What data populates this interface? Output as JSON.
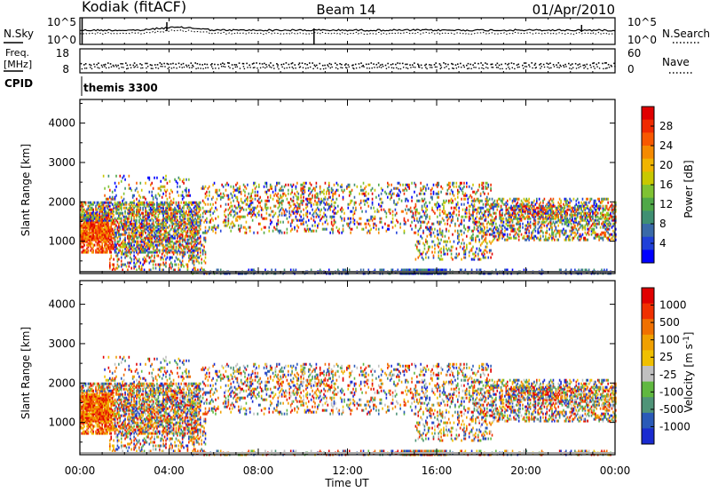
{
  "header": {
    "site": "Kodiak (fitACF)",
    "beam": "Beam 14",
    "date": "01/Apr/2010"
  },
  "top_panels": {
    "nsky_label": "N.Sky",
    "nsky_ticks": [
      "10^5",
      "10^0"
    ],
    "nsearch_label": "N.Search",
    "nsearch_ticks": [
      "10^5",
      "10^0"
    ],
    "freq_label_1": "Freq.",
    "freq_label_2": "[MHz]",
    "freq_ticks": [
      "18",
      "8"
    ],
    "nave_label": "Nave",
    "nave_ticks": [
      "60",
      "0"
    ],
    "cpid_label": "CPID",
    "program": "themis 3300"
  },
  "power_colorbar": {
    "label": "Power [dB]",
    "ticks": [
      "28",
      "24",
      "20",
      "16",
      "12",
      "8",
      "4"
    ],
    "colors": [
      "#0000ff",
      "#2040d8",
      "#3a6aa8",
      "#3f8f72",
      "#4fa848",
      "#7fc232",
      "#c8c800",
      "#f0b400",
      "#f58a00",
      "#f85800",
      "#f02a00",
      "#e00000"
    ]
  },
  "velocity_colorbar": {
    "label": "Velocity [m s^-1]",
    "ticks": [
      "1000",
      "500",
      "100",
      "25",
      "-25",
      "-100",
      "-500",
      "-1000"
    ],
    "colors": [
      "#1a2bd0",
      "#2a5ab8",
      "#4f9478",
      "#60b840",
      "#c0c0c0",
      "#f0c000",
      "#f0a000",
      "#f07000",
      "#f03000",
      "#e00000"
    ]
  },
  "x_axis": {
    "label": "Time UT",
    "ticks": [
      "00:00",
      "04:00",
      "08:00",
      "12:00",
      "16:00",
      "20:00",
      "00:00"
    ]
  },
  "chart_data": [
    {
      "type": "heatmap",
      "name": "power-rti",
      "ylabel": "Slant Range [km]",
      "yticks": [
        1000,
        2000,
        3000,
        4000
      ],
      "ylim": [
        180,
        4600
      ],
      "xlim_hours": [
        0,
        24
      ],
      "value_label": "Power [dB]",
      "value_range": [
        0,
        30
      ]
    },
    {
      "type": "heatmap",
      "name": "velocity-rti",
      "ylabel": "Slant Range [km]",
      "yticks": [
        1000,
        2000,
        3000,
        4000
      ],
      "ylim": [
        180,
        4600
      ],
      "xlim_hours": [
        0,
        24
      ],
      "value_label": "Velocity [m s^-1]",
      "value_range": [
        -1000,
        1000
      ]
    }
  ]
}
